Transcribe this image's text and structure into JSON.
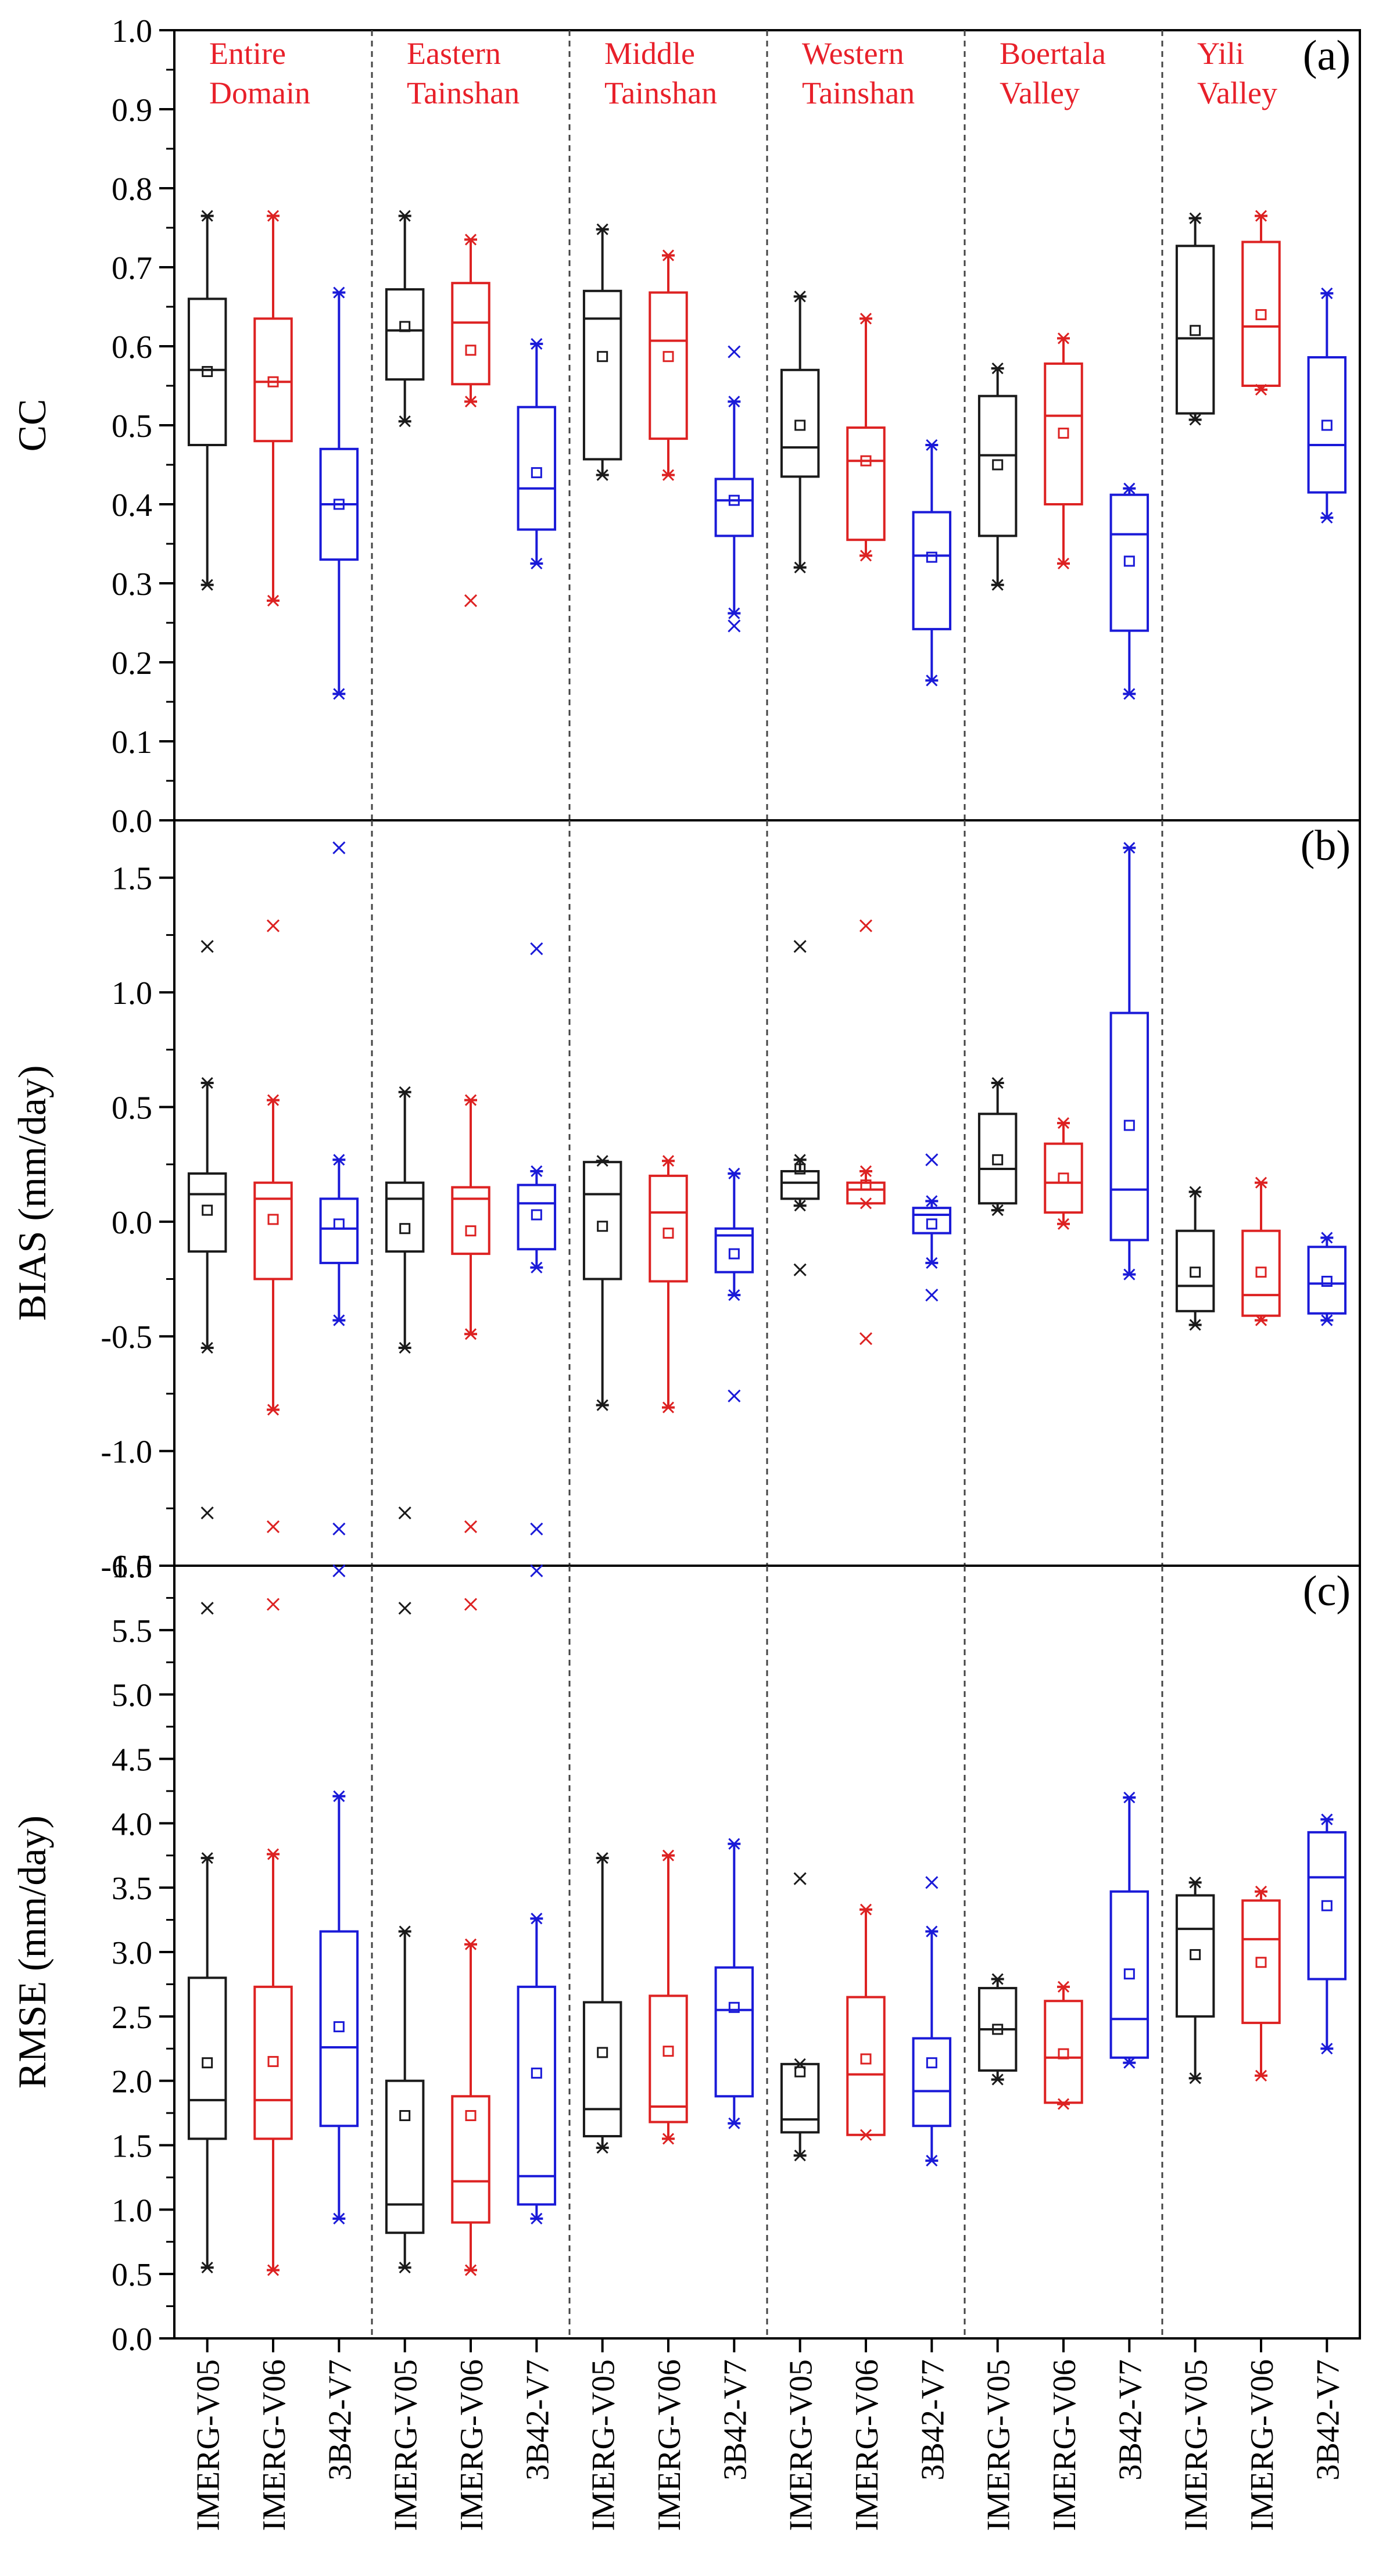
{
  "chart_data": {
    "type": "box",
    "x_labels": [
      "IMERG-V05",
      "IMERG-V06",
      "3B42-V7",
      "IMERG-V05",
      "IMERG-V06",
      "3B42-V7",
      "IMERG-V05",
      "IMERG-V06",
      "3B42-V7",
      "IMERG-V05",
      "IMERG-V06",
      "3B42-V7",
      "IMERG-V05",
      "IMERG-V06",
      "3B42-V7",
      "IMERG-V05",
      "IMERG-V06",
      "3B42-V7"
    ],
    "products": [
      "IMERG-V05",
      "IMERG-V06",
      "3B42-V7"
    ],
    "colors": {
      "IMERG-V05": "#1a1a1a",
      "IMERG-V06": "#dd2222",
      "3B42-V7": "#1a1ad8",
      "region_label": "#e8202a",
      "axis": "#000000",
      "divider": "#444444"
    },
    "regions": [
      {
        "line1": "Entire",
        "line2": "Domain"
      },
      {
        "line1": "Eastern",
        "line2": "Tainshan"
      },
      {
        "line1": "Middle",
        "line2": "Tainshan"
      },
      {
        "line1": "Western",
        "line2": "Tainshan"
      },
      {
        "line1": "Boertala",
        "line2": "Valley"
      },
      {
        "line1": "Yili",
        "line2": "Valley"
      }
    ],
    "panels": [
      {
        "label": "(a)",
        "ylabel": "CC",
        "ylim": [
          0.0,
          1.0
        ],
        "tick_step": 0.1,
        "tick_labels": [
          "0.0",
          "0.1",
          "0.2",
          "0.3",
          "0.4",
          "0.5",
          "0.6",
          "0.7",
          "0.8",
          "0.9",
          "1.0"
        ],
        "show_regions": true,
        "boxes": [
          {
            "q1": 0.475,
            "median": 0.57,
            "q3": 0.66,
            "wlo": 0.298,
            "whi": 0.765,
            "mean": 0.568,
            "outliers": []
          },
          {
            "q1": 0.48,
            "median": 0.555,
            "q3": 0.635,
            "wlo": 0.278,
            "whi": 0.765,
            "mean": 0.555,
            "outliers": []
          },
          {
            "q1": 0.33,
            "median": 0.4,
            "q3": 0.47,
            "wlo": 0.16,
            "whi": 0.668,
            "mean": 0.4,
            "outliers": []
          },
          {
            "q1": 0.558,
            "median": 0.62,
            "q3": 0.672,
            "wlo": 0.505,
            "whi": 0.765,
            "mean": 0.625,
            "outliers": []
          },
          {
            "q1": 0.552,
            "median": 0.63,
            "q3": 0.68,
            "wlo": 0.53,
            "whi": 0.735,
            "mean": 0.595,
            "outliers": [
              0.278
            ]
          },
          {
            "q1": 0.368,
            "median": 0.42,
            "q3": 0.523,
            "wlo": 0.325,
            "whi": 0.603,
            "mean": 0.44,
            "outliers": []
          },
          {
            "q1": 0.457,
            "median": 0.635,
            "q3": 0.67,
            "wlo": 0.437,
            "whi": 0.748,
            "mean": 0.587,
            "outliers": []
          },
          {
            "q1": 0.483,
            "median": 0.607,
            "q3": 0.668,
            "wlo": 0.437,
            "whi": 0.715,
            "mean": 0.587,
            "outliers": []
          },
          {
            "q1": 0.36,
            "median": 0.405,
            "q3": 0.432,
            "wlo": 0.262,
            "whi": 0.53,
            "mean": 0.405,
            "outliers": [
              0.593,
              0.246
            ]
          },
          {
            "q1": 0.435,
            "median": 0.472,
            "q3": 0.57,
            "wlo": 0.32,
            "whi": 0.663,
            "mean": 0.5,
            "outliers": []
          },
          {
            "q1": 0.355,
            "median": 0.455,
            "q3": 0.497,
            "wlo": 0.335,
            "whi": 0.635,
            "mean": 0.455,
            "outliers": []
          },
          {
            "q1": 0.242,
            "median": 0.335,
            "q3": 0.39,
            "wlo": 0.177,
            "whi": 0.475,
            "mean": 0.333,
            "outliers": []
          },
          {
            "q1": 0.36,
            "median": 0.462,
            "q3": 0.537,
            "wlo": 0.298,
            "whi": 0.572,
            "mean": 0.45,
            "outliers": []
          },
          {
            "q1": 0.4,
            "median": 0.512,
            "q3": 0.578,
            "wlo": 0.325,
            "whi": 0.61,
            "mean": 0.49,
            "outliers": []
          },
          {
            "q1": 0.24,
            "median": 0.362,
            "q3": 0.412,
            "wlo": 0.16,
            "whi": 0.42,
            "mean": 0.328,
            "outliers": []
          },
          {
            "q1": 0.515,
            "median": 0.61,
            "q3": 0.727,
            "wlo": 0.507,
            "whi": 0.762,
            "mean": 0.62,
            "outliers": []
          },
          {
            "q1": 0.55,
            "median": 0.625,
            "q3": 0.732,
            "wlo": 0.545,
            "whi": 0.765,
            "mean": 0.64,
            "outliers": []
          },
          {
            "q1": 0.415,
            "median": 0.475,
            "q3": 0.586,
            "wlo": 0.383,
            "whi": 0.667,
            "mean": 0.5,
            "outliers": []
          }
        ]
      },
      {
        "label": "(b)",
        "ylabel": "BIAS (mm/day)",
        "ylim": [
          -1.5,
          1.75
        ],
        "tick_step": 0.5,
        "tick_labels": [
          "-1.5",
          "-1.0",
          "-0.5",
          "0.0",
          "0.5",
          "1.0",
          "1.5"
        ],
        "show_regions": false,
        "boxes": [
          {
            "q1": -0.13,
            "median": 0.12,
            "q3": 0.21,
            "wlo": -0.55,
            "whi": 0.605,
            "mean": 0.05,
            "outliers": [
              1.2,
              -1.27
            ]
          },
          {
            "q1": -0.25,
            "median": 0.1,
            "q3": 0.17,
            "wlo": -0.82,
            "whi": 0.53,
            "mean": 0.01,
            "outliers": [
              1.29,
              -1.33
            ]
          },
          {
            "q1": -0.18,
            "median": -0.03,
            "q3": 0.1,
            "wlo": -0.43,
            "whi": 0.27,
            "mean": -0.01,
            "outliers": [
              1.63,
              -1.34
            ]
          },
          {
            "q1": -0.13,
            "median": 0.1,
            "q3": 0.17,
            "wlo": -0.55,
            "whi": 0.565,
            "mean": -0.03,
            "outliers": [
              -1.27
            ]
          },
          {
            "q1": -0.14,
            "median": 0.1,
            "q3": 0.15,
            "wlo": -0.49,
            "whi": 0.53,
            "mean": -0.04,
            "outliers": [
              -1.33
            ]
          },
          {
            "q1": -0.12,
            "median": 0.08,
            "q3": 0.16,
            "wlo": -0.2,
            "whi": 0.22,
            "mean": 0.03,
            "outliers": [
              1.19,
              -1.34
            ]
          },
          {
            "q1": -0.25,
            "median": 0.12,
            "q3": 0.26,
            "wlo": -0.8,
            "whi": 0.265,
            "mean": -0.02,
            "outliers": []
          },
          {
            "q1": -0.26,
            "median": 0.04,
            "q3": 0.2,
            "wlo": -0.81,
            "whi": 0.265,
            "mean": -0.05,
            "outliers": []
          },
          {
            "q1": -0.22,
            "median": -0.06,
            "q3": -0.03,
            "wlo": -0.32,
            "whi": 0.21,
            "mean": -0.14,
            "outliers": [
              -0.76
            ]
          },
          {
            "q1": 0.1,
            "median": 0.17,
            "q3": 0.22,
            "wlo": 0.07,
            "whi": 0.27,
            "mean": 0.23,
            "outliers": [
              1.2,
              -0.21
            ]
          },
          {
            "q1": 0.08,
            "median": 0.14,
            "q3": 0.17,
            "wlo": 0.08,
            "whi": 0.22,
            "mean": 0.16,
            "outliers": [
              1.29,
              -0.51
            ]
          },
          {
            "q1": -0.05,
            "median": 0.03,
            "q3": 0.06,
            "wlo": -0.18,
            "whi": 0.09,
            "mean": -0.01,
            "outliers": [
              0.27,
              -0.32
            ]
          },
          {
            "q1": 0.08,
            "median": 0.23,
            "q3": 0.47,
            "wlo": 0.05,
            "whi": 0.605,
            "mean": 0.27,
            "outliers": []
          },
          {
            "q1": 0.04,
            "median": 0.17,
            "q3": 0.34,
            "wlo": -0.01,
            "whi": 0.43,
            "mean": 0.19,
            "outliers": []
          },
          {
            "q1": -0.08,
            "median": 0.14,
            "q3": 0.91,
            "wlo": -0.23,
            "whi": 1.63,
            "mean": 0.42,
            "outliers": []
          },
          {
            "q1": -0.39,
            "median": -0.28,
            "q3": -0.04,
            "wlo": -0.45,
            "whi": 0.13,
            "mean": -0.22,
            "outliers": []
          },
          {
            "q1": -0.41,
            "median": -0.32,
            "q3": -0.04,
            "wlo": -0.43,
            "whi": 0.17,
            "mean": -0.22,
            "outliers": []
          },
          {
            "q1": -0.4,
            "median": -0.27,
            "q3": -0.11,
            "wlo": -0.43,
            "whi": -0.07,
            "mean": -0.26,
            "outliers": []
          }
        ]
      },
      {
        "label": "(c)",
        "ylabel": "RMSE (mm/day)",
        "ylim": [
          0.0,
          6.0
        ],
        "tick_step": 0.5,
        "tick_labels": [
          "0.0",
          "0.5",
          "1.0",
          "1.5",
          "2.0",
          "2.5",
          "3.0",
          "3.5",
          "4.0",
          "4.5",
          "5.0",
          "5.5",
          "6.0"
        ],
        "show_regions": false,
        "boxes": [
          {
            "q1": 1.55,
            "median": 1.85,
            "q3": 2.8,
            "wlo": 0.55,
            "whi": 3.73,
            "mean": 2.14,
            "outliers": [
              5.67
            ]
          },
          {
            "q1": 1.55,
            "median": 1.85,
            "q3": 2.73,
            "wlo": 0.53,
            "whi": 3.76,
            "mean": 2.15,
            "outliers": [
              5.7
            ]
          },
          {
            "q1": 1.65,
            "median": 2.26,
            "q3": 3.16,
            "wlo": 0.93,
            "whi": 4.21,
            "mean": 2.42,
            "outliers": [
              5.96
            ]
          },
          {
            "q1": 0.82,
            "median": 1.04,
            "q3": 2.0,
            "wlo": 0.55,
            "whi": 3.16,
            "mean": 1.73,
            "outliers": [
              5.67
            ]
          },
          {
            "q1": 0.9,
            "median": 1.22,
            "q3": 1.88,
            "wlo": 0.53,
            "whi": 3.06,
            "mean": 1.73,
            "outliers": [
              5.7
            ]
          },
          {
            "q1": 1.04,
            "median": 1.26,
            "q3": 2.73,
            "wlo": 0.93,
            "whi": 3.26,
            "mean": 2.06,
            "outliers": [
              5.96
            ]
          },
          {
            "q1": 1.57,
            "median": 1.78,
            "q3": 2.61,
            "wlo": 1.48,
            "whi": 3.73,
            "mean": 2.22,
            "outliers": []
          },
          {
            "q1": 1.68,
            "median": 1.8,
            "q3": 2.66,
            "wlo": 1.55,
            "whi": 3.75,
            "mean": 2.23,
            "outliers": []
          },
          {
            "q1": 1.88,
            "median": 2.55,
            "q3": 2.88,
            "wlo": 1.67,
            "whi": 3.84,
            "mean": 2.57,
            "outliers": []
          },
          {
            "q1": 1.6,
            "median": 1.7,
            "q3": 2.13,
            "wlo": 1.42,
            "whi": 2.13,
            "mean": 2.07,
            "outliers": [
              3.57
            ]
          },
          {
            "q1": 1.58,
            "median": 2.05,
            "q3": 2.65,
            "wlo": 1.58,
            "whi": 3.33,
            "mean": 2.17,
            "outliers": []
          },
          {
            "q1": 1.65,
            "median": 1.92,
            "q3": 2.33,
            "wlo": 1.38,
            "whi": 3.16,
            "mean": 2.14,
            "outliers": [
              3.54
            ]
          },
          {
            "q1": 2.08,
            "median": 2.4,
            "q3": 2.72,
            "wlo": 2.01,
            "whi": 2.79,
            "mean": 2.4,
            "outliers": []
          },
          {
            "q1": 1.83,
            "median": 2.18,
            "q3": 2.62,
            "wlo": 1.82,
            "whi": 2.73,
            "mean": 2.21,
            "outliers": []
          },
          {
            "q1": 2.18,
            "median": 2.48,
            "q3": 3.47,
            "wlo": 2.14,
            "whi": 4.2,
            "mean": 2.83,
            "outliers": []
          },
          {
            "q1": 2.5,
            "median": 3.18,
            "q3": 3.44,
            "wlo": 2.02,
            "whi": 3.54,
            "mean": 2.98,
            "outliers": []
          },
          {
            "q1": 2.45,
            "median": 3.1,
            "q3": 3.4,
            "wlo": 2.04,
            "whi": 3.47,
            "mean": 2.92,
            "outliers": []
          },
          {
            "q1": 2.79,
            "median": 3.58,
            "q3": 3.93,
            "wlo": 2.25,
            "whi": 4.03,
            "mean": 3.36,
            "outliers": []
          }
        ]
      }
    ]
  }
}
